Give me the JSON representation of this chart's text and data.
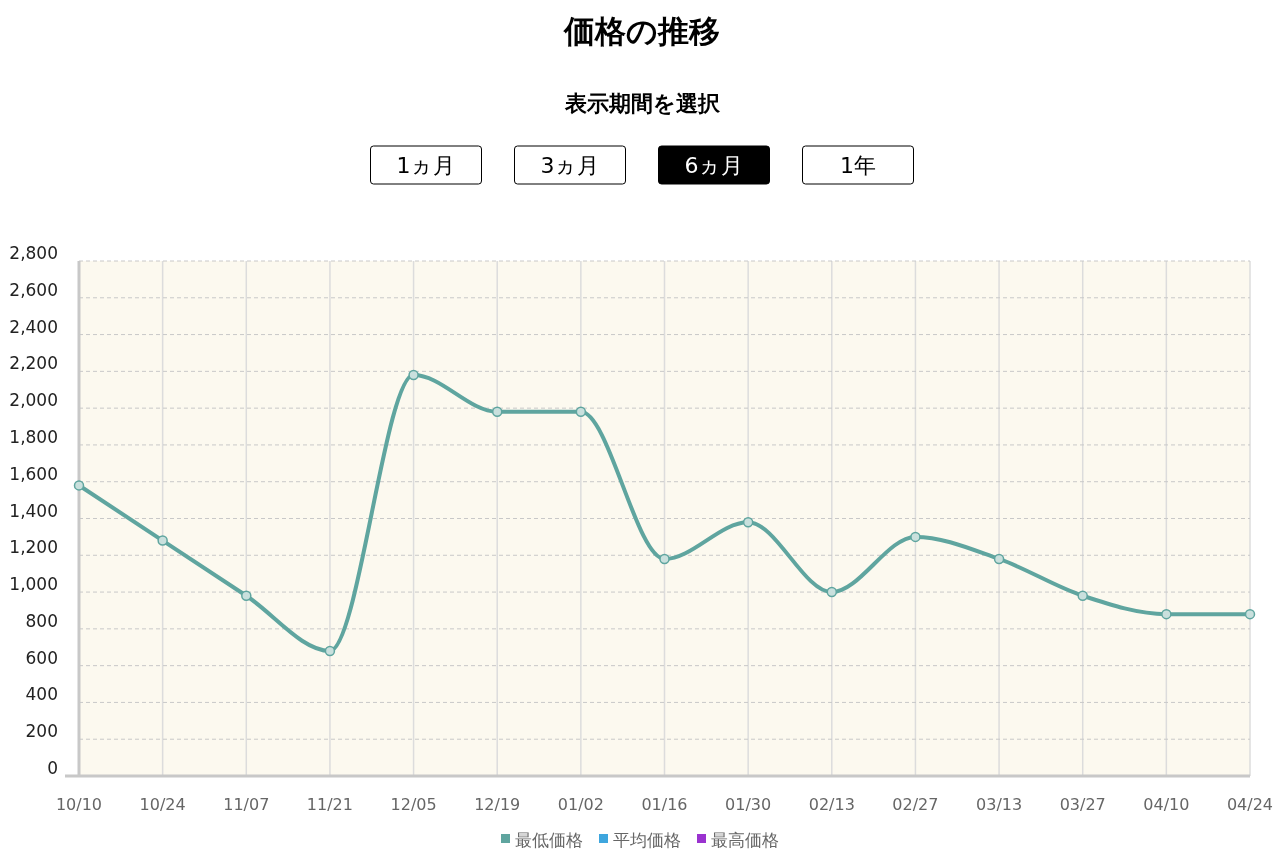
{
  "chart_data": {
    "type": "line",
    "title": "価格の推移",
    "subtitle": "表示期間を選択",
    "annotations": [
      "1ヵ月",
      "3ヵ月",
      "6ヵ月",
      "1年"
    ],
    "categories": [
      "10/10",
      "10/24",
      "11/07",
      "11/21",
      "12/05",
      "12/19",
      "01/02",
      "01/16",
      "01/30",
      "02/13",
      "02/27",
      "03/13",
      "03/27",
      "04/10",
      "04/24"
    ],
    "series": [
      {
        "name": "最低価格",
        "color": "#5fa59f",
        "values": [
          1580,
          1280,
          980,
          680,
          2180,
          1980,
          1980,
          1180,
          1380,
          1000,
          1300,
          1180,
          980,
          880,
          880
        ]
      },
      {
        "name": "平均価格",
        "color": "#3ea6de",
        "values": [
          null,
          null,
          null,
          null,
          null,
          null,
          null,
          null,
          null,
          null,
          null,
          null,
          null,
          null,
          null
        ]
      },
      {
        "name": "最高価格",
        "color": "#9a32cf",
        "values": [
          null,
          null,
          null,
          null,
          null,
          null,
          null,
          null,
          null,
          null,
          null,
          null,
          null,
          null,
          null
        ]
      }
    ],
    "ylim": [
      0,
      2800
    ],
    "yticks": [
      {
        "value": 0,
        "label": "0"
      },
      {
        "value": 200,
        "label": "200"
      },
      {
        "value": 400,
        "label": "400"
      },
      {
        "value": 600,
        "label": "600"
      },
      {
        "value": 800,
        "label": "800"
      },
      {
        "value": 1000,
        "label": "1,000"
      },
      {
        "value": 1200,
        "label": "1,200"
      },
      {
        "value": 1400,
        "label": "1,400"
      },
      {
        "value": 1600,
        "label": "1,600"
      },
      {
        "value": 1800,
        "label": "1,800"
      },
      {
        "value": 2000,
        "label": "2,000"
      },
      {
        "value": 2200,
        "label": "2,200"
      },
      {
        "value": 2400,
        "label": "2,400"
      },
      {
        "value": 2600,
        "label": "2,600"
      },
      {
        "value": 2800,
        "label": "2,800"
      }
    ],
    "grid": true,
    "legend": "bottom",
    "marker": "circle",
    "line_style": "solid"
  }
}
